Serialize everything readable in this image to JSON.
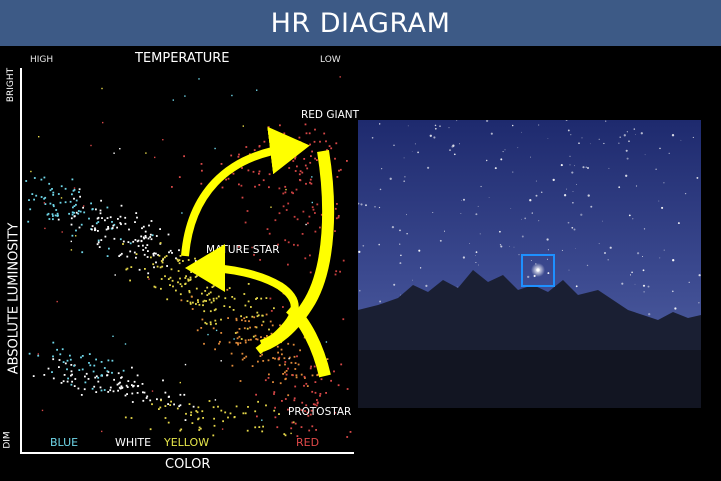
{
  "header": {
    "title": "HR DIAGRAM",
    "color": "#3d5a86"
  },
  "hr_diagram": {
    "top_axis": {
      "label": "TEMPERATURE",
      "left_end": "HIGH",
      "right_end": "LOW"
    },
    "bottom_axis": {
      "label": "COLOR"
    },
    "left_axis": {
      "label": "ABSOLUTE LUMINOSITY",
      "top_end": "BRIGHT",
      "bottom_end": "DIM"
    },
    "color_labels": [
      {
        "text": "BLUE",
        "color": "#6fd6e8"
      },
      {
        "text": "WHITE",
        "color": "#ffffff"
      },
      {
        "text": "YELLOW",
        "color": "#e6e64a"
      },
      {
        "text": "RED",
        "color": "#e04848"
      }
    ],
    "annotations": {
      "red_giant": "RED GIANT",
      "mature_star": "MATURE STAR",
      "protostar": "PROTOSTAR"
    },
    "arrow_color": "#ffff00"
  },
  "photo": {
    "sky_color": "#3c4a90",
    "highlight_box_color": "#1e90ff",
    "icons": [
      "mountain-silhouette",
      "highlighted-star"
    ]
  }
}
